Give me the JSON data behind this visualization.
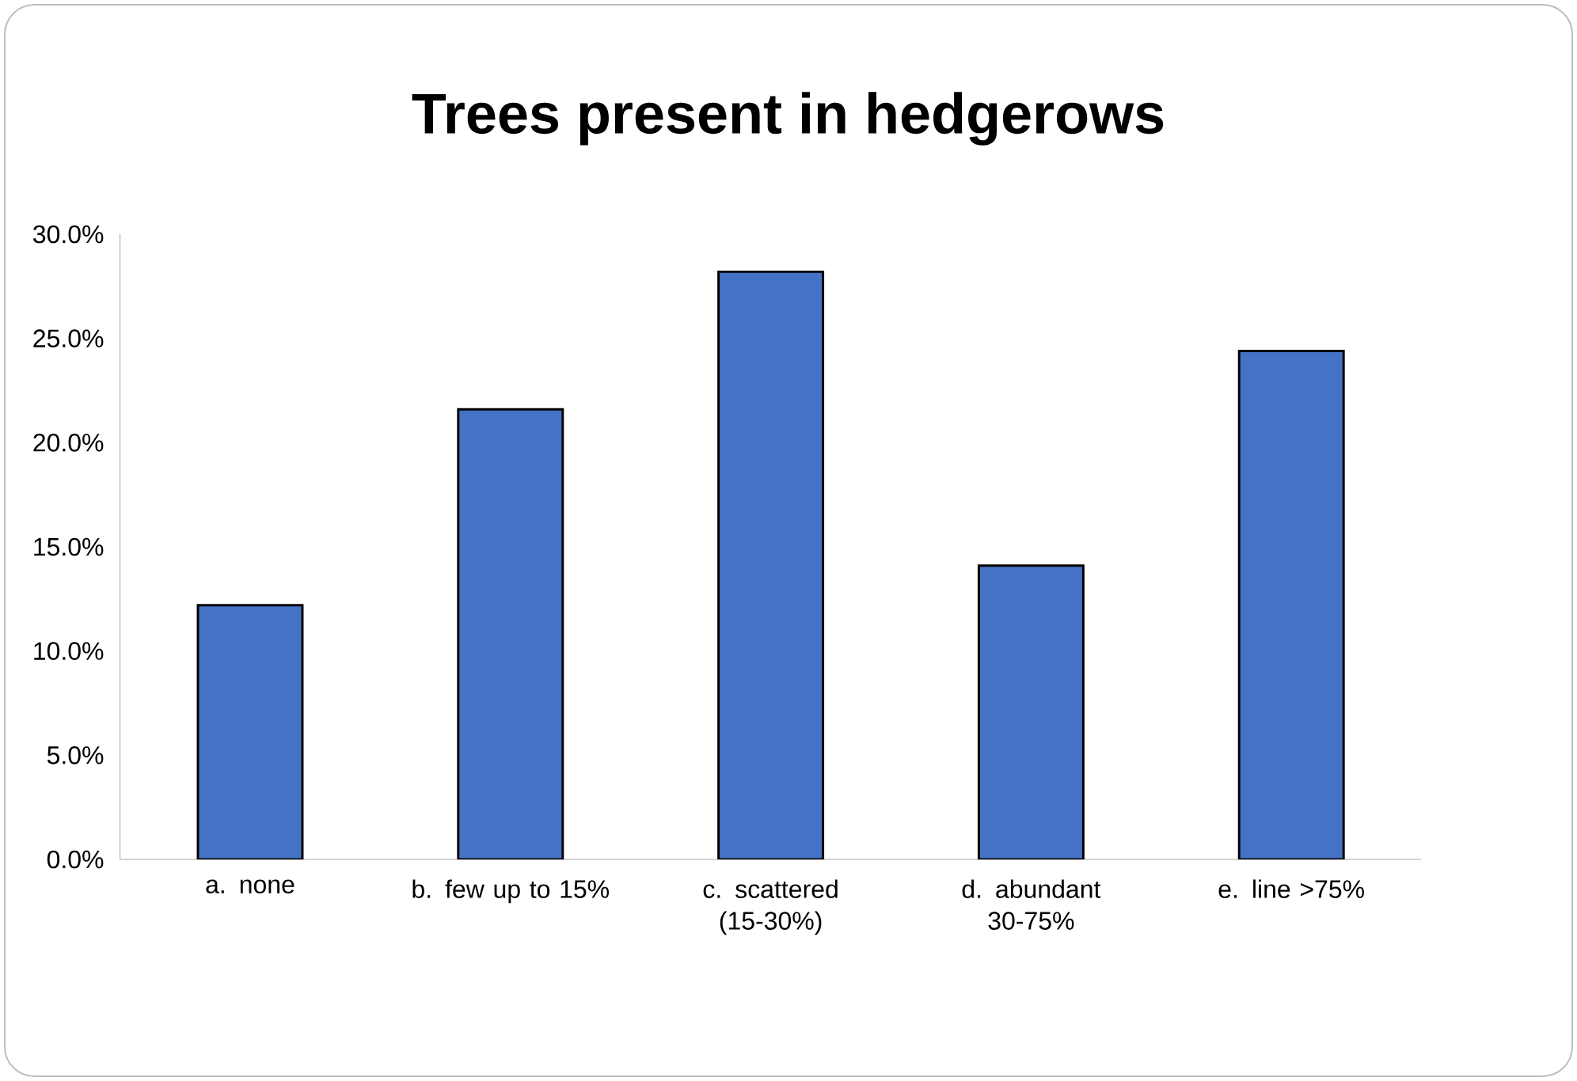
{
  "chart_data": {
    "type": "bar",
    "title": "Trees present in hedgerows",
    "categories": [
      "a. none",
      "b. few up to 15%",
      "c. scattered (15-30%)",
      "d. abundant 30-75%",
      "e. line >75%"
    ],
    "values": [
      12.2,
      21.6,
      28.2,
      14.1,
      24.4
    ],
    "color": "#4472c4",
    "ylim": [
      0,
      30
    ],
    "yticks": [
      {
        "value": 0,
        "label": "0.0%"
      },
      {
        "value": 5,
        "label": "5.0%"
      },
      {
        "value": 10,
        "label": "10.0%"
      },
      {
        "value": 15,
        "label": "15.0%"
      },
      {
        "value": 20,
        "label": "20.0%"
      },
      {
        "value": 25,
        "label": "25.0%"
      },
      {
        "value": 30,
        "label": "30.0%"
      }
    ],
    "grid": false
  }
}
